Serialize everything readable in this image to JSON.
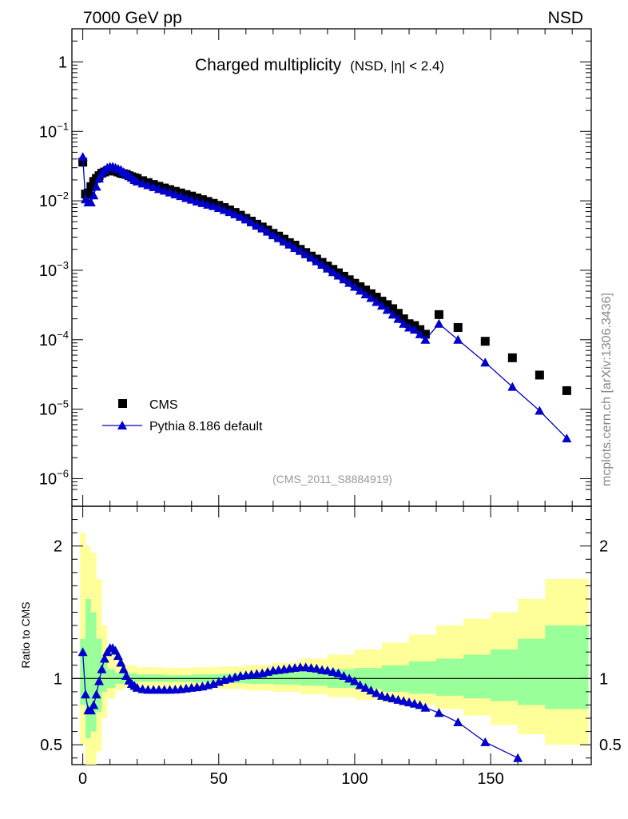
{
  "header": {
    "left": "7000 GeV pp",
    "right": "NSD"
  },
  "title": {
    "main": "Charged multiplicity",
    "qualifier_pre": "(NSD, |",
    "qualifier_eta": "η",
    "qualifier_post": "| < 2.4)"
  },
  "analysis_id": "(CMS_2011_S8884919)",
  "watermark": "mcplots.cern.ch [arXiv:1306.3436]",
  "legend": {
    "data_label": "CMS",
    "mc_label": "Pythia 8.186 default"
  },
  "colors": {
    "mc": "#0000cc",
    "data": "#000000",
    "band_inner": "#99ff99",
    "band_outer": "#ffff99",
    "watermark": "#888888"
  },
  "chart_data": [
    {
      "type": "scatter",
      "panel": "main",
      "yscale": "log",
      "ylim": [
        4e-07,
        3
      ],
      "xlim": [
        -4,
        187
      ],
      "y_ticks": [
        {
          "base": "1",
          "exp": ""
        },
        {
          "base": "10",
          "exp": "−1"
        },
        {
          "base": "10",
          "exp": "−2"
        },
        {
          "base": "10",
          "exp": "−3"
        },
        {
          "base": "10",
          "exp": "−4"
        },
        {
          "base": "10",
          "exp": "−5"
        },
        {
          "base": "10",
          "exp": "−6"
        }
      ],
      "y_tick_values": [
        1,
        0.1,
        0.01,
        0.001,
        0.0001,
        1e-05,
        1e-06
      ],
      "series": [
        {
          "name": "CMS",
          "style": "square",
          "x": [
            0,
            1,
            2,
            3,
            4,
            5,
            6,
            7,
            8,
            9,
            10,
            11,
            12,
            13,
            14,
            15,
            16,
            17,
            18,
            19,
            20,
            22,
            24,
            26,
            28,
            30,
            32,
            34,
            36,
            38,
            40,
            42,
            44,
            46,
            48,
            50,
            52,
            54,
            56,
            58,
            60,
            62,
            64,
            66,
            68,
            70,
            72,
            74,
            76,
            78,
            80,
            82,
            84,
            86,
            88,
            90,
            92,
            94,
            96,
            98,
            100,
            102,
            104,
            106,
            108,
            110,
            112,
            114,
            116,
            118,
            120,
            122,
            124,
            126,
            131,
            138,
            148,
            158,
            168,
            178
          ],
          "y": [
            0.036,
            0.0125,
            0.013,
            0.016,
            0.019,
            0.021,
            0.023,
            0.025,
            0.026,
            0.027,
            0.027,
            0.027,
            0.0268,
            0.026,
            0.025,
            0.0245,
            0.024,
            0.023,
            0.0222,
            0.0215,
            0.021,
            0.0195,
            0.0183,
            0.0172,
            0.0162,
            0.0153,
            0.0145,
            0.0137,
            0.013,
            0.0123,
            0.0117,
            0.011,
            0.0104,
            0.0098,
            0.0092,
            0.0086,
            0.008,
            0.0074,
            0.0068,
            0.0062,
            0.0056,
            0.0051,
            0.0046,
            0.0042,
            0.0038,
            0.0034,
            0.0031,
            0.0028,
            0.0025,
            0.0023,
            0.002,
            0.0018,
            0.0016,
            0.00145,
            0.0013,
            0.00115,
            0.00103,
            0.00092,
            0.00082,
            0.00073,
            0.00065,
            0.00058,
            0.00052,
            0.00046,
            0.00041,
            0.00036,
            0.00032,
            0.00028,
            0.00024,
            0.0002,
            0.00017,
            0.00016,
            0.00014,
            0.00012,
            0.00023,
            0.00015,
            9.5e-05,
            5.5e-05,
            3.1e-05,
            1.85e-05
          ]
        },
        {
          "name": "Pythia 8.186 default",
          "style": "triangle-line",
          "x": [
            0,
            1,
            2,
            3,
            4,
            5,
            6,
            7,
            8,
            9,
            10,
            11,
            12,
            13,
            14,
            15,
            16,
            17,
            18,
            19,
            20,
            22,
            24,
            26,
            28,
            30,
            32,
            34,
            36,
            38,
            40,
            42,
            44,
            46,
            48,
            50,
            52,
            54,
            56,
            58,
            60,
            62,
            64,
            66,
            68,
            70,
            72,
            74,
            76,
            78,
            80,
            82,
            84,
            86,
            88,
            90,
            92,
            94,
            96,
            98,
            100,
            102,
            104,
            106,
            108,
            110,
            112,
            114,
            116,
            118,
            120,
            122,
            124,
            126,
            131,
            138,
            148,
            158,
            168,
            178
          ],
          "y": [
            0.043,
            0.0105,
            0.0095,
            0.0095,
            0.012,
            0.016,
            0.021,
            0.025,
            0.028,
            0.03,
            0.031,
            0.031,
            0.03,
            0.029,
            0.028,
            0.026,
            0.0245,
            0.023,
            0.0215,
            0.02,
            0.019,
            0.0178,
            0.0168,
            0.0158,
            0.0148,
            0.014,
            0.0132,
            0.0124,
            0.0117,
            0.011,
            0.0104,
            0.0098,
            0.0093,
            0.0088,
            0.0084,
            0.0079,
            0.0074,
            0.0069,
            0.0064,
            0.0059,
            0.0054,
            0.0049,
            0.0044,
            0.004,
            0.0036,
            0.0032,
            0.0029,
            0.0026,
            0.00235,
            0.0021,
            0.0019,
            0.0017,
            0.00152,
            0.00135,
            0.0012,
            0.00106,
            0.00094,
            0.00084,
            0.00074,
            0.00066,
            0.00058,
            0.00051,
            0.00045,
            0.0004,
            0.00035,
            0.00031,
            0.00027,
            0.00023,
            0.0002,
            0.00017,
            0.00015,
            0.00014,
            0.00012,
            0.0001,
            0.00017,
            0.0001,
            4.7e-05,
            2.1e-05,
            9.5e-06,
            3.8e-06
          ]
        }
      ]
    },
    {
      "type": "line",
      "panel": "ratio",
      "ylabel": "Ratio to CMS",
      "ylim": [
        0.35,
        2.3
      ],
      "xlim": [
        -4,
        187
      ],
      "x_tick_labels": [
        "0",
        "50",
        "100",
        "150"
      ],
      "x_ticks": [
        0,
        50,
        100,
        150
      ],
      "y_tick_labels": [
        "0.5",
        "1",
        "2"
      ],
      "y_ticks": [
        0.5,
        1,
        2
      ],
      "reference_line": 1,
      "band_inner": {
        "x": [
          -1,
          1,
          3,
          5,
          7,
          9,
          12,
          15,
          20,
          30,
          40,
          50,
          60,
          70,
          80,
          90,
          100,
          110,
          120,
          130,
          140,
          150,
          160,
          170,
          186
        ],
        "lo": [
          0.8,
          0.55,
          0.6,
          0.75,
          0.9,
          0.93,
          0.96,
          0.97,
          0.975,
          0.975,
          0.97,
          0.965,
          0.96,
          0.955,
          0.945,
          0.93,
          0.92,
          0.9,
          0.885,
          0.87,
          0.85,
          0.83,
          0.8,
          0.77,
          0.77
        ],
        "hi": [
          1.3,
          1.6,
          1.5,
          1.3,
          1.12,
          1.07,
          1.045,
          1.04,
          1.03,
          1.025,
          1.03,
          1.035,
          1.04,
          1.045,
          1.06,
          1.07,
          1.08,
          1.1,
          1.13,
          1.15,
          1.18,
          1.22,
          1.3,
          1.4,
          1.45
        ]
      },
      "band_outer": {
        "x": [
          -1,
          1,
          3,
          5,
          7,
          9,
          12,
          15,
          20,
          30,
          40,
          50,
          60,
          70,
          80,
          90,
          100,
          110,
          120,
          130,
          140,
          150,
          160,
          170,
          186
        ],
        "lo": [
          0.5,
          0.3,
          0.3,
          0.45,
          0.7,
          0.85,
          0.91,
          0.93,
          0.935,
          0.93,
          0.925,
          0.92,
          0.91,
          0.9,
          0.88,
          0.86,
          0.84,
          0.82,
          0.8,
          0.77,
          0.72,
          0.65,
          0.58,
          0.5,
          0.4
        ],
        "hi": [
          2.1,
          2.0,
          1.95,
          1.75,
          1.4,
          1.2,
          1.12,
          1.1,
          1.085,
          1.08,
          1.085,
          1.09,
          1.1,
          1.12,
          1.15,
          1.18,
          1.22,
          1.27,
          1.33,
          1.4,
          1.45,
          1.5,
          1.6,
          1.75,
          1.8
        ]
      },
      "series": [
        {
          "name": "Pythia 8.186 default",
          "style": "triangle-line",
          "x": [
            0,
            1,
            2,
            3,
            4,
            5,
            6,
            7,
            8,
            9,
            10,
            11,
            12,
            13,
            14,
            15,
            16,
            17,
            18,
            19,
            20,
            22,
            24,
            26,
            28,
            30,
            32,
            34,
            36,
            38,
            40,
            42,
            44,
            46,
            48,
            50,
            52,
            54,
            56,
            58,
            60,
            62,
            64,
            66,
            68,
            70,
            72,
            74,
            76,
            78,
            80,
            82,
            84,
            86,
            88,
            90,
            92,
            94,
            96,
            98,
            100,
            102,
            104,
            106,
            108,
            110,
            112,
            114,
            116,
            118,
            120,
            122,
            124,
            126,
            131,
            138,
            148,
            160
          ],
          "y": [
            1.2,
            0.88,
            0.76,
            0.76,
            0.8,
            0.88,
            0.98,
            1.07,
            1.15,
            1.2,
            1.23,
            1.23,
            1.21,
            1.17,
            1.12,
            1.07,
            1.02,
            0.985,
            0.96,
            0.945,
            0.93,
            0.92,
            0.915,
            0.915,
            0.915,
            0.915,
            0.915,
            0.917,
            0.92,
            0.925,
            0.93,
            0.935,
            0.94,
            0.95,
            0.96,
            0.975,
            0.99,
            1.0,
            1.01,
            1.02,
            1.025,
            1.03,
            1.035,
            1.04,
            1.05,
            1.06,
            1.065,
            1.07,
            1.075,
            1.08,
            1.085,
            1.085,
            1.08,
            1.075,
            1.065,
            1.06,
            1.05,
            1.04,
            1.02,
            1.0,
            0.98,
            0.95,
            0.93,
            0.91,
            0.89,
            0.87,
            0.86,
            0.85,
            0.84,
            0.83,
            0.82,
            0.81,
            0.8,
            0.78,
            0.74,
            0.67,
            0.52,
            0.4
          ]
        }
      ]
    }
  ]
}
